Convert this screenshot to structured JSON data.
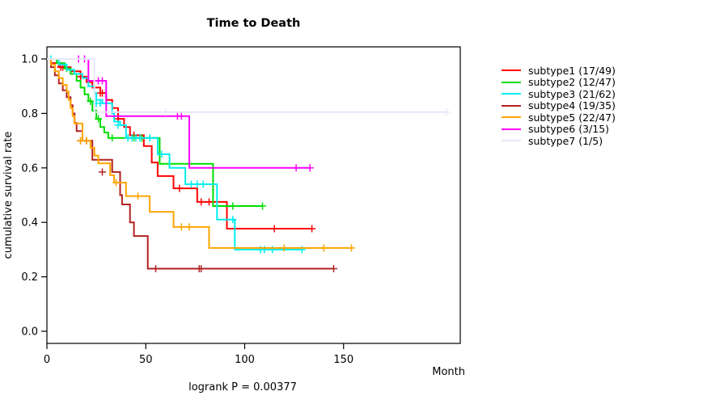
{
  "chart_data": {
    "type": "line",
    "variant": "kaplan-meier-step-plot",
    "title": "Time to Death",
    "xlabel": "Month",
    "ylabel": "cumulative survival rate",
    "annotation": "logrank P = 0.00377",
    "xlim": [
      0,
      209
    ],
    "ylim": [
      0,
      1
    ],
    "x_ticks": [
      0,
      50,
      100,
      150
    ],
    "y_ticks": [
      {
        "label": "0.0",
        "value": 0.0
      },
      {
        "label": "0.2",
        "value": 0.2
      },
      {
        "label": "0.4",
        "value": 0.4
      },
      {
        "label": "0.6",
        "value": 0.6
      },
      {
        "label": "0.8",
        "value": 0.8
      },
      {
        "label": "1.0",
        "value": 1.0
      }
    ],
    "grid": false,
    "legend_position": "right",
    "series": [
      {
        "name": "subtype1",
        "label": "subtype1 (17/49)",
        "color": "#FF0000",
        "end_month": 134,
        "steps": [
          [
            0,
            1.0
          ],
          [
            2,
            0.985
          ],
          [
            6,
            0.97
          ],
          [
            12,
            0.955
          ],
          [
            17,
            0.935
          ],
          [
            20,
            0.915
          ],
          [
            23,
            0.895
          ],
          [
            27,
            0.875
          ],
          [
            30,
            0.85
          ],
          [
            33,
            0.82
          ],
          [
            36,
            0.78
          ],
          [
            39,
            0.75
          ],
          [
            42,
            0.72
          ],
          [
            49,
            0.68
          ],
          [
            53,
            0.62
          ],
          [
            56,
            0.57
          ],
          [
            64,
            0.525
          ],
          [
            76,
            0.475
          ],
          [
            91,
            0.377
          ]
        ],
        "censors": [
          [
            7,
            0.97
          ],
          [
            8,
            0.97
          ],
          [
            17,
            0.935
          ],
          [
            27,
            0.875
          ],
          [
            28,
            0.875
          ],
          [
            36,
            0.78
          ],
          [
            44,
            0.72
          ],
          [
            67,
            0.525
          ],
          [
            78,
            0.475
          ],
          [
            82,
            0.475
          ],
          [
            115,
            0.377
          ],
          [
            134,
            0.377
          ]
        ]
      },
      {
        "name": "subtype2",
        "label": "subtype2 (12/47)",
        "color": "#00DD00",
        "end_month": 109,
        "steps": [
          [
            0,
            1.0
          ],
          [
            5,
            0.985
          ],
          [
            9,
            0.965
          ],
          [
            12,
            0.945
          ],
          [
            15,
            0.92
          ],
          [
            17,
            0.895
          ],
          [
            19,
            0.87
          ],
          [
            21,
            0.845
          ],
          [
            23,
            0.81
          ],
          [
            25,
            0.78
          ],
          [
            27,
            0.75
          ],
          [
            29,
            0.73
          ],
          [
            31,
            0.71
          ],
          [
            57,
            0.615
          ],
          [
            84,
            0.46
          ]
        ],
        "censors": [
          [
            10,
            0.965
          ],
          [
            22,
            0.845
          ],
          [
            26,
            0.78
          ],
          [
            33,
            0.71
          ],
          [
            41,
            0.71
          ],
          [
            44,
            0.71
          ],
          [
            48,
            0.71
          ],
          [
            62,
            0.615
          ],
          [
            94,
            0.46
          ],
          [
            109,
            0.46
          ]
        ]
      },
      {
        "name": "subtype3",
        "label": "subtype3 (21/62)",
        "color": "#00EEEE",
        "end_month": 129,
        "steps": [
          [
            0,
            1.0
          ],
          [
            6,
            0.98
          ],
          [
            10,
            0.96
          ],
          [
            14,
            0.945
          ],
          [
            18,
            0.93
          ],
          [
            21,
            0.9
          ],
          [
            24,
            0.875
          ],
          [
            25,
            0.85
          ],
          [
            28,
            0.837
          ],
          [
            33,
            0.8
          ],
          [
            34,
            0.77
          ],
          [
            37,
            0.757
          ],
          [
            40,
            0.71
          ],
          [
            56,
            0.65
          ],
          [
            62,
            0.6
          ],
          [
            70,
            0.54
          ],
          [
            86,
            0.41
          ],
          [
            95,
            0.3
          ]
        ],
        "censors": [
          [
            2,
            1.0
          ],
          [
            25,
            0.837
          ],
          [
            27,
            0.837
          ],
          [
            30,
            0.837
          ],
          [
            36,
            0.757
          ],
          [
            41,
            0.71
          ],
          [
            43,
            0.71
          ],
          [
            45,
            0.71
          ],
          [
            47,
            0.71
          ],
          [
            52,
            0.71
          ],
          [
            58,
            0.65
          ],
          [
            73,
            0.54
          ],
          [
            76,
            0.54
          ],
          [
            79,
            0.54
          ],
          [
            94,
            0.41
          ],
          [
            108,
            0.3
          ],
          [
            110,
            0.3
          ],
          [
            114,
            0.3
          ],
          [
            129,
            0.3
          ]
        ]
      },
      {
        "name": "subtype4",
        "label": "subtype4 (19/35)",
        "color": "#B22222",
        "end_month": 145,
        "steps": [
          [
            0,
            1.0
          ],
          [
            2,
            0.97
          ],
          [
            4,
            0.94
          ],
          [
            6,
            0.91
          ],
          [
            8,
            0.885
          ],
          [
            10,
            0.86
          ],
          [
            12,
            0.83
          ],
          [
            13,
            0.8
          ],
          [
            14,
            0.765
          ],
          [
            15,
            0.735
          ],
          [
            18,
            0.7
          ],
          [
            23,
            0.63
          ],
          [
            33,
            0.585
          ],
          [
            37,
            0.5
          ],
          [
            38,
            0.466
          ],
          [
            42,
            0.4
          ],
          [
            44,
            0.35
          ],
          [
            51,
            0.23
          ]
        ],
        "censors": [
          [
            17,
            0.7
          ],
          [
            20,
            0.7
          ],
          [
            28,
            0.585
          ],
          [
            55,
            0.23
          ],
          [
            77,
            0.23
          ],
          [
            78,
            0.23
          ],
          [
            145,
            0.23
          ]
        ]
      },
      {
        "name": "subtype5",
        "label": "subtype5 (22/47)",
        "color": "#FFA500",
        "end_month": 154,
        "steps": [
          [
            0,
            1.0
          ],
          [
            2,
            0.98
          ],
          [
            4,
            0.955
          ],
          [
            6,
            0.93
          ],
          [
            8,
            0.905
          ],
          [
            10,
            0.88
          ],
          [
            11,
            0.85
          ],
          [
            12,
            0.82
          ],
          [
            13,
            0.79
          ],
          [
            14,
            0.763
          ],
          [
            18,
            0.7
          ],
          [
            22,
            0.674
          ],
          [
            24,
            0.645
          ],
          [
            26,
            0.617
          ],
          [
            32,
            0.573
          ],
          [
            34,
            0.546
          ],
          [
            40,
            0.496
          ],
          [
            52,
            0.439
          ],
          [
            64,
            0.383
          ],
          [
            82,
            0.306
          ]
        ],
        "censors": [
          [
            17,
            0.7
          ],
          [
            20,
            0.7
          ],
          [
            35,
            0.546
          ],
          [
            46,
            0.496
          ],
          [
            68,
            0.383
          ],
          [
            72,
            0.383
          ],
          [
            120,
            0.306
          ],
          [
            140,
            0.306
          ],
          [
            154,
            0.306
          ]
        ]
      },
      {
        "name": "subtype6",
        "label": "subtype6 (3/15)",
        "color": "#FF00FF",
        "end_month": 133,
        "steps": [
          [
            0,
            1.0
          ],
          [
            21,
            0.92
          ],
          [
            30,
            0.79
          ],
          [
            72,
            0.6
          ]
        ],
        "censors": [
          [
            16,
            1.0
          ],
          [
            19,
            1.0
          ],
          [
            24,
            0.92
          ],
          [
            26,
            0.92
          ],
          [
            28,
            0.92
          ],
          [
            66,
            0.79
          ],
          [
            68,
            0.79
          ],
          [
            126,
            0.6
          ],
          [
            133,
            0.6
          ]
        ]
      },
      {
        "name": "subtype7",
        "label": "subtype7 (1/5)",
        "color": "#E6E6FA",
        "end_month": 202,
        "steps": [
          [
            0,
            1.0
          ],
          [
            24,
            0.805
          ]
        ],
        "censors": [
          [
            60,
            0.805
          ],
          [
            202,
            0.805
          ]
        ]
      }
    ]
  }
}
